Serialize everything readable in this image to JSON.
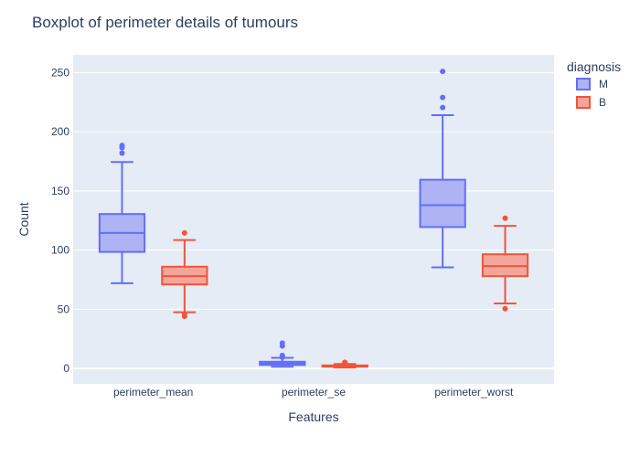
{
  "chart_data": {
    "type": "boxplot",
    "title": "Boxplot of perimeter details of tumours",
    "xlabel": "Features",
    "ylabel": "Count",
    "categories": [
      "perimeter_mean",
      "perimeter_se",
      "perimeter_worst"
    ],
    "ylim": [
      -13,
      265
    ],
    "yticks": [
      0,
      50,
      100,
      150,
      200,
      250
    ],
    "legend": {
      "title": "diagnosis",
      "placement": "top-right"
    },
    "series": [
      {
        "name": "M",
        "color": "#636efa",
        "fill": "#aeb3f3",
        "boxes": [
          {
            "min": 72,
            "q1": 98.5,
            "median": 114.5,
            "q3": 130.5,
            "max": 174.5,
            "outliers": [
              182,
              186.5,
              188.5
            ]
          },
          {
            "min": 1.5,
            "q1": 3,
            "median": 4.3,
            "q3": 5.7,
            "max": 9,
            "outliers": [
              9.5,
              10.5,
              11,
              19,
              21.5
            ]
          },
          {
            "min": 85.5,
            "q1": 119.5,
            "median": 138,
            "q3": 159.5,
            "max": 214,
            "outliers": [
              220.5,
              229,
              251
            ]
          }
        ]
      },
      {
        "name": "B",
        "color": "#ef553b",
        "fill": "#f3a59a",
        "boxes": [
          {
            "min": 47.5,
            "q1": 71,
            "median": 78,
            "q3": 86,
            "max": 108.5,
            "outliers": [
              44,
              46,
              114.5
            ]
          },
          {
            "min": 0.8,
            "q1": 1.5,
            "median": 1.9,
            "q3": 2.6,
            "max": 3.8,
            "outliers": [
              4.2,
              4.6,
              5.2
            ]
          },
          {
            "min": 55,
            "q1": 78,
            "median": 86.5,
            "q3": 96.5,
            "max": 120.5,
            "outliers": [
              50.5,
              127
            ]
          }
        ]
      }
    ]
  }
}
